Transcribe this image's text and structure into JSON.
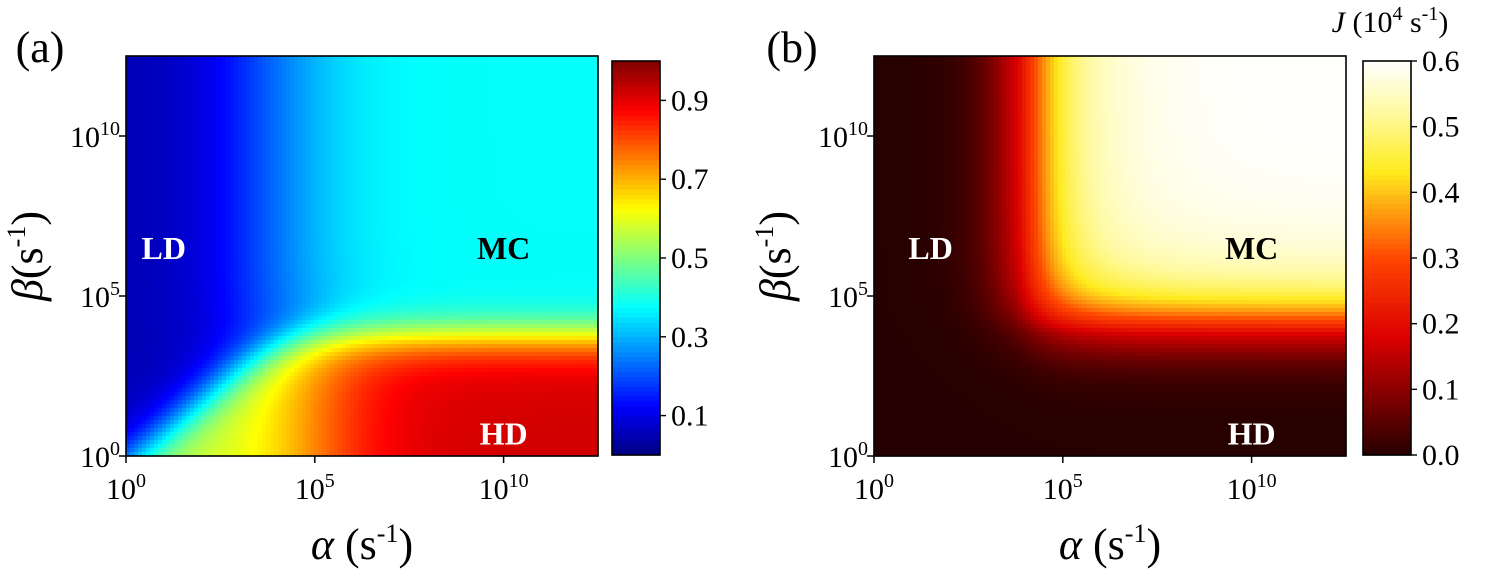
{
  "chart_data": [
    {
      "panel_label": "(a)",
      "type": "heatmap",
      "xlabel": {
        "symbol": "α",
        "unit": "(s",
        "exp": "-1",
        "close": ")"
      },
      "ylabel": {
        "symbol": "β",
        "unit": "(s",
        "exp": "-1",
        "close": ")"
      },
      "x_scale": "log",
      "y_scale": "log",
      "xlim": [
        1,
        10000000000000.0
      ],
      "ylim": [
        1,
        10000000000000.0
      ],
      "x_ticks": [
        {
          "base": "10",
          "exp": "0",
          "value": 1
        },
        {
          "base": "10",
          "exp": "5",
          "value": 100000
        },
        {
          "base": "10",
          "exp": "10",
          "value": 10000000000
        }
      ],
      "y_ticks": [
        {
          "base": "10",
          "exp": "0",
          "value": 1
        },
        {
          "base": "10",
          "exp": "5",
          "value": 100000
        },
        {
          "base": "10",
          "exp": "10",
          "value": 10000000000
        }
      ],
      "colorscale": "jet",
      "colorbar_range": [
        0,
        1
      ],
      "colorbar_ticks": [
        "0.1",
        "0.3",
        "0.5",
        "0.7",
        "0.9"
      ],
      "colorbar_tick_values": [
        0.1,
        0.3,
        0.5,
        0.7,
        0.9
      ],
      "region_labels": [
        {
          "text": "LD",
          "log_alpha": 1.0,
          "log_beta": 6.5,
          "color": "#ffffff"
        },
        {
          "text": "MC",
          "log_alpha": 10.0,
          "log_beta": 6.5,
          "color": "#000000"
        },
        {
          "text": "HD",
          "log_alpha": 10.0,
          "log_beta": 0.7,
          "color": "#ffffff"
        }
      ],
      "phase_values": {
        "LD": 0.05,
        "MC": 0.38,
        "HD": 0.92
      }
    },
    {
      "panel_label": "(b)",
      "type": "heatmap",
      "xlabel": {
        "symbol": "α",
        "unit": "(s",
        "exp": "-1",
        "close": ")"
      },
      "ylabel": {
        "symbol": "β",
        "unit": "(s",
        "exp": "-1",
        "close": ")"
      },
      "x_scale": "log",
      "y_scale": "log",
      "xlim": [
        1,
        10000000000000.0
      ],
      "ylim": [
        1,
        10000000000000.0
      ],
      "x_ticks": [
        {
          "base": "10",
          "exp": "0",
          "value": 1
        },
        {
          "base": "10",
          "exp": "5",
          "value": 100000
        },
        {
          "base": "10",
          "exp": "10",
          "value": 10000000000
        }
      ],
      "y_ticks": [
        {
          "base": "10",
          "exp": "0",
          "value": 1
        },
        {
          "base": "10",
          "exp": "5",
          "value": 100000
        },
        {
          "base": "10",
          "exp": "10",
          "value": 10000000000
        }
      ],
      "colorscale": "hot",
      "colorbar_title": {
        "symbol": "J",
        "pre": "(10",
        "exp": "4",
        "post": " s",
        "exp2": "-1",
        "close": ")"
      },
      "colorbar_range": [
        0,
        0.6
      ],
      "colorbar_ticks": [
        "0.0",
        "0.1",
        "0.2",
        "0.3",
        "0.4",
        "0.5",
        "0.6"
      ],
      "colorbar_tick_values": [
        0,
        0.1,
        0.2,
        0.3,
        0.4,
        0.5,
        0.6
      ],
      "region_labels": [
        {
          "text": "LD",
          "log_alpha": 1.5,
          "log_beta": 6.5,
          "color": "#ffffff"
        },
        {
          "text": "MC",
          "log_alpha": 10.0,
          "log_beta": 6.5,
          "color": "#000000"
        },
        {
          "text": "HD",
          "log_alpha": 10.0,
          "log_beta": 0.7,
          "color": "#ffffff"
        }
      ],
      "max_value": 0.6
    }
  ]
}
